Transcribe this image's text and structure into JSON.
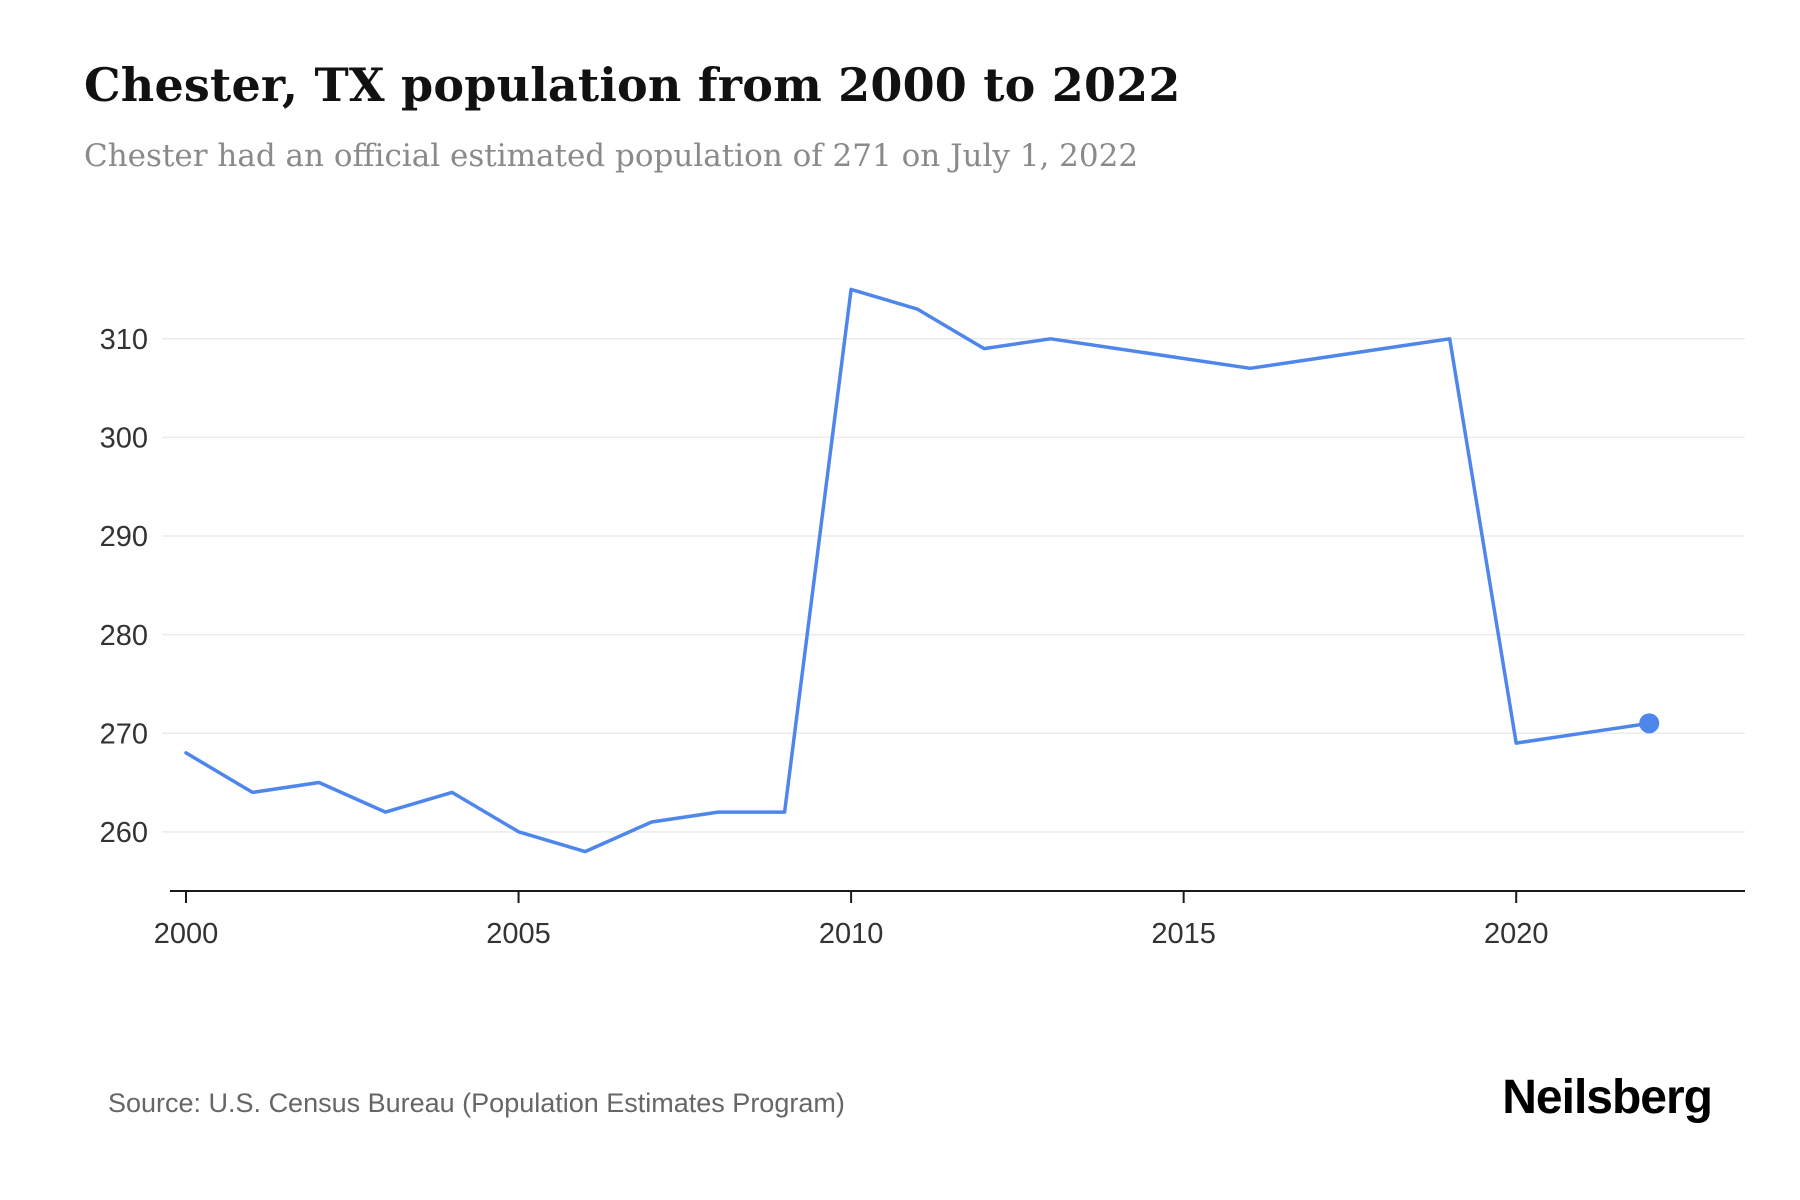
{
  "page": {
    "title": "Chester, TX population from 2000 to 2022",
    "subtitle": "Chester had an official estimated population of 271 on July 1, 2022",
    "source": "Source: U.S. Census Bureau (Population Estimates Program)",
    "logo": "Neilsberg"
  },
  "chart_data": {
    "type": "line",
    "title": "Chester, TX population from 2000 to 2022",
    "xlabel": "",
    "ylabel": "",
    "x": [
      2000,
      2001,
      2002,
      2003,
      2004,
      2005,
      2006,
      2007,
      2008,
      2009,
      2010,
      2011,
      2012,
      2013,
      2014,
      2015,
      2016,
      2017,
      2018,
      2019,
      2020,
      2021,
      2022
    ],
    "values": [
      268,
      264,
      265,
      262,
      264,
      260,
      258,
      261,
      262,
      262,
      315,
      313,
      309,
      310,
      309,
      308,
      307,
      308,
      309,
      310,
      269,
      270,
      271
    ],
    "series_name": "Population",
    "yticks": [
      260,
      270,
      280,
      290,
      300,
      310
    ],
    "xticks": [
      2000,
      2005,
      2010,
      2015,
      2020
    ],
    "ylim": [
      254,
      319
    ],
    "xlim": [
      2000,
      2023.44
    ],
    "grid": true,
    "legend": false,
    "line_color": "#4e86ec",
    "grid_color": "#ebebeb",
    "axis_color": "#1a1a1a",
    "tick_label_color": "#333333",
    "end_marker": true,
    "end_marker_value": 271,
    "end_marker_year": 2022
  }
}
